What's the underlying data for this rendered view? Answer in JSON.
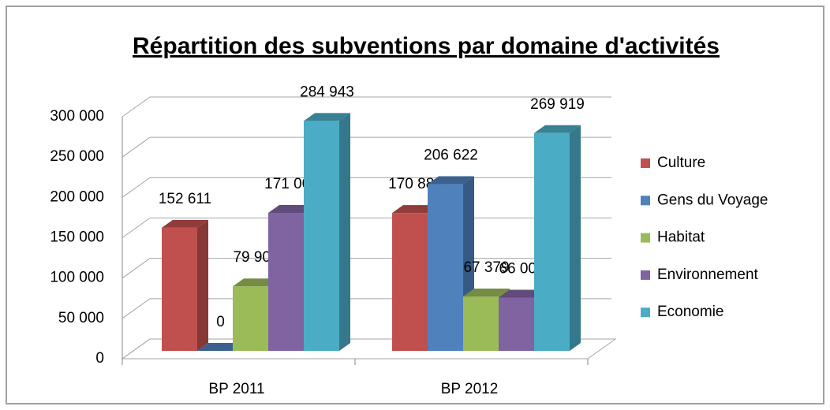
{
  "chart_data": {
    "type": "bar3d",
    "title": "Répartition des subventions par domaine d'activités",
    "categories": [
      "BP 2011",
      "BP 2012"
    ],
    "series": [
      {
        "name": "Culture",
        "color": "#c0504d",
        "values": [
          152611,
          170884
        ],
        "value_labels": [
          "152 611",
          "170 884"
        ]
      },
      {
        "name": "Gens du Voyage",
        "color": "#4f81bd",
        "values": [
          0,
          206622
        ],
        "value_labels": [
          "0",
          "206 622"
        ]
      },
      {
        "name": "Habitat",
        "color": "#9bbb59",
        "values": [
          79906,
          67379
        ],
        "value_labels": [
          "79 906",
          "67 379"
        ]
      },
      {
        "name": "Environnement",
        "color": "#8064a2",
        "values": [
          171000,
          66000
        ],
        "value_labels": [
          "171 000",
          "66 000"
        ]
      },
      {
        "name": "Economie",
        "color": "#4bacc6",
        "values": [
          284943,
          269919
        ],
        "value_labels": [
          "284 943",
          "269 919"
        ]
      }
    ],
    "ylim": [
      0,
      300000
    ],
    "yticks": [
      0,
      {
        "value": 50000,
        "label": "50 000"
      },
      {
        "value": 100000,
        "label": "100 000"
      },
      {
        "value": 150000,
        "label": "150 000"
      },
      {
        "value": 200000,
        "label": "200 000"
      },
      {
        "value": 250000,
        "label": "250 000"
      },
      {
        "value": 300000,
        "label": "300 000"
      }
    ],
    "grid": true,
    "legend": "right"
  }
}
